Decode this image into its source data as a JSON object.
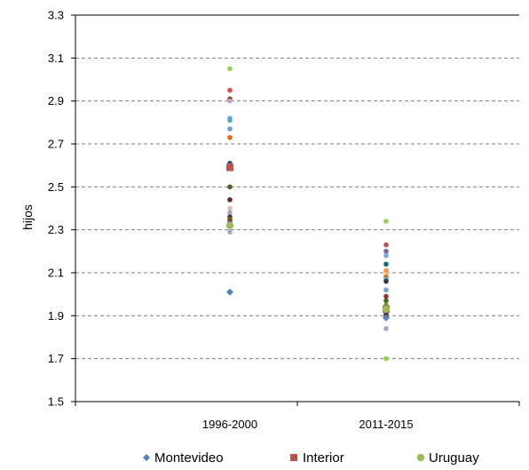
{
  "chart_data": {
    "type": "scatter",
    "title": "",
    "xlabel": "",
    "ylabel": "hijos",
    "ylim": [
      1.5,
      3.3
    ],
    "yticks": [
      "3.3",
      "3.1",
      "2.9",
      "2.7",
      "2.5",
      "2.3",
      "2.1",
      "1.9",
      "1.7",
      "1.5"
    ],
    "categories": [
      "1996-2000",
      "2011-2015"
    ],
    "grid": "horizontal dashed",
    "legend_position": "bottom",
    "series": [
      {
        "name": "Montevideo",
        "marker": "diamond",
        "color": "#4f81bd",
        "points": [
          {
            "x": "1996-2000",
            "y": 2.01
          },
          {
            "x": "2011-2015",
            "y": 1.89
          }
        ]
      },
      {
        "name": "Interior",
        "marker": "square",
        "color": "#c0504d",
        "points": [
          {
            "x": "1996-2000",
            "y": 2.59
          },
          {
            "x": "2011-2015",
            "y": 1.93
          }
        ]
      },
      {
        "name": "Uruguay",
        "marker": "circle",
        "color": "#9bbb59",
        "points": [
          {
            "x": "1996-2000",
            "y": 2.32
          },
          {
            "x": "2011-2015",
            "y": 1.93
          }
        ]
      }
    ],
    "other_points": [
      {
        "x": "1996-2000",
        "y": 3.05,
        "color": "#92d050"
      },
      {
        "x": "1996-2000",
        "y": 2.95,
        "color": "#e04b4b"
      },
      {
        "x": "1996-2000",
        "y": 2.91,
        "color": "#8b4513"
      },
      {
        "x": "1996-2000",
        "y": 2.9,
        "color": "#c39bd3"
      },
      {
        "x": "1996-2000",
        "y": 2.82,
        "color": "#6fa8dc"
      },
      {
        "x": "1996-2000",
        "y": 2.81,
        "color": "#4bacc6"
      },
      {
        "x": "1996-2000",
        "y": 2.77,
        "color": "#6b9fd4"
      },
      {
        "x": "1996-2000",
        "y": 2.73,
        "color": "#e36c09"
      },
      {
        "x": "1996-2000",
        "y": 2.61,
        "color": "#1f4e79"
      },
      {
        "x": "1996-2000",
        "y": 2.6,
        "color": "#8064a2"
      },
      {
        "x": "1996-2000",
        "y": 2.5,
        "color": "#4f6228"
      },
      {
        "x": "1996-2000",
        "y": 2.44,
        "color": "#632523"
      },
      {
        "x": "1996-2000",
        "y": 2.4,
        "color": "#e6b9b8"
      },
      {
        "x": "1996-2000",
        "y": 2.38,
        "color": "#b1a0c7"
      },
      {
        "x": "1996-2000",
        "y": 2.36,
        "color": "#3f3151"
      },
      {
        "x": "1996-2000",
        "y": 2.35,
        "color": "#7f6000"
      },
      {
        "x": "1996-2000",
        "y": 2.34,
        "color": "#953735"
      },
      {
        "x": "1996-2000",
        "y": 2.33,
        "color": "#31859c"
      },
      {
        "x": "1996-2000",
        "y": 2.29,
        "color": "#b1a0c7"
      },
      {
        "x": "2011-2015",
        "y": 2.34,
        "color": "#92d050"
      },
      {
        "x": "2011-2015",
        "y": 2.23,
        "color": "#c0504d"
      },
      {
        "x": "2011-2015",
        "y": 2.2,
        "color": "#8064a2"
      },
      {
        "x": "2011-2015",
        "y": 2.18,
        "color": "#6fa8dc"
      },
      {
        "x": "2011-2015",
        "y": 2.14,
        "color": "#0f6e6e"
      },
      {
        "x": "2011-2015",
        "y": 2.11,
        "color": "#f79646"
      },
      {
        "x": "2011-2015",
        "y": 2.09,
        "color": "#fabf8f"
      },
      {
        "x": "2011-2015",
        "y": 2.08,
        "color": "#e36c09"
      },
      {
        "x": "2011-2015",
        "y": 2.07,
        "color": "#4bacc6"
      },
      {
        "x": "2011-2015",
        "y": 2.06,
        "color": "#3f3151"
      },
      {
        "x": "2011-2015",
        "y": 2.02,
        "color": "#6fa8dc"
      },
      {
        "x": "2011-2015",
        "y": 1.99,
        "color": "#953735"
      },
      {
        "x": "2011-2015",
        "y": 1.97,
        "color": "#4f6228"
      },
      {
        "x": "2011-2015",
        "y": 1.95,
        "color": "#77933c"
      },
      {
        "x": "2011-2015",
        "y": 1.92,
        "color": "#c39bd3"
      },
      {
        "x": "2011-2015",
        "y": 1.91,
        "color": "#1f4e79"
      },
      {
        "x": "2011-2015",
        "y": 1.9,
        "color": "#632523"
      },
      {
        "x": "2011-2015",
        "y": 1.84,
        "color": "#b1a0c7"
      },
      {
        "x": "2011-2015",
        "y": 1.7,
        "color": "#92d050"
      }
    ]
  }
}
